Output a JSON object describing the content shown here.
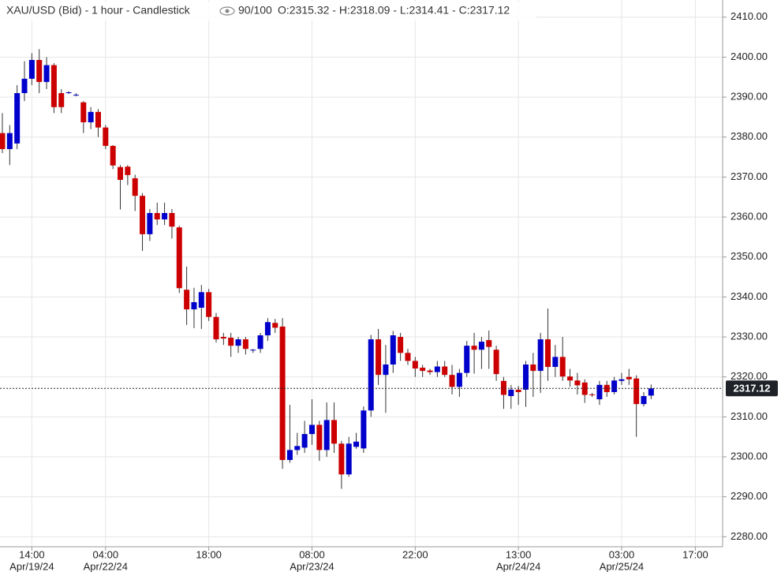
{
  "chart_data": {
    "type": "candlestick",
    "title": "XAU/USD (Bid) - 1 hour - Candlestick",
    "visible_count": "90/100",
    "ohlc_label": "O:2315.32 - H:2318.09 - L:2314.41 - C:2317.12",
    "up_color": "#0000cc",
    "down_color": "#cc0000",
    "grid": true,
    "xlim": [
      -0.32,
      97.7
    ],
    "ylim": [
      2277.5,
      2414.3
    ],
    "yticks": [
      {
        "value": 2280,
        "label": "2280.00"
      },
      {
        "value": 2290,
        "label": "2290.00"
      },
      {
        "value": 2300,
        "label": "2300.00"
      },
      {
        "value": 2310,
        "label": "2310.00"
      },
      {
        "value": 2320,
        "label": "2320.00"
      },
      {
        "value": 2330,
        "label": "2330.00"
      },
      {
        "value": 2340,
        "label": "2340.00"
      },
      {
        "value": 2350,
        "label": "2350.00"
      },
      {
        "value": 2360,
        "label": "2360.00"
      },
      {
        "value": 2370,
        "label": "2370.00"
      },
      {
        "value": 2380,
        "label": "2380.00"
      },
      {
        "value": 2390,
        "label": "2390.00"
      },
      {
        "value": 2400,
        "label": "2400.00"
      },
      {
        "value": 2410,
        "label": "2410.00"
      }
    ],
    "xticks": [
      {
        "value": 4,
        "label": "14:00",
        "date": "Apr/19/24"
      },
      {
        "value": 14,
        "label": "04:00",
        "date": "Apr/22/24"
      },
      {
        "value": 28,
        "label": "18:00"
      },
      {
        "value": 42,
        "label": "08:00",
        "date": "Apr/23/24"
      },
      {
        "value": 56,
        "label": "22:00"
      },
      {
        "value": 70,
        "label": "13:00",
        "date": "Apr/24/24"
      },
      {
        "value": 84,
        "label": "03:00",
        "date": "Apr/25/24"
      },
      {
        "value": 94,
        "label": "17:00"
      }
    ],
    "last_price": {
      "value": 2317.12,
      "label": "2317.12"
    },
    "open": [
      2381,
      2377,
      2378.4,
      2391,
      2394.6,
      2399.3,
      2393.8,
      2398,
      2391,
      2391,
      2390.5,
      2388.7,
      2383.7,
      2386.3,
      2382.4,
      2377.8,
      2372.5,
      2372.6,
      2369.7,
      2365.3,
      2355.7,
      2361,
      2359.4,
      2361,
      2357.4,
      2341.8,
      2336.9,
      2337.3,
      2341.2,
      2335,
      2330,
      2329.8,
      2327.8,
      2329.4,
      2326.6,
      2327,
      2330.4,
      2333.5,
      2332.6,
      2299.2,
      2301.7,
      2302.3,
      2305.7,
      2308,
      2301.7,
      2309.2,
      2303.3,
      2295.6,
      2302.5,
      2302.1,
      2311.6,
      2329.4,
      2320.5,
      2323.1,
      2330,
      2326,
      2324,
      2322.3,
      2321.6,
      2321.2,
      2322.6,
      2320.5,
      2317.5,
      2321,
      2327.8,
      2326.8,
      2329.2,
      2326.8,
      2319,
      2315.2,
      2316.8,
      2316.8,
      2323.1,
      2321.5,
      2329.4,
      2322.5,
      2325,
      2320.1,
      2319.1,
      2318.6,
      2315.6,
      2314.4,
      2318,
      2316.2,
      2319,
      2320,
      2319.6,
      2313.2,
      2315.32
    ],
    "high": [
      2386,
      2383,
      2393,
      2399,
      2401,
      2402,
      2400,
      2398.5,
      2392,
      2391.5,
      2391,
      2389,
      2387.5,
      2387,
      2383,
      2378,
      2373,
      2373,
      2370.6,
      2366,
      2362,
      2363.6,
      2363.6,
      2362,
      2357.8,
      2347.6,
      2342.3,
      2343,
      2342,
      2336,
      2331,
      2331,
      2330,
      2330,
      2327,
      2331,
      2334.7,
      2334.5,
      2334.7,
      2313,
      2306,
      2309,
      2314.4,
      2309,
      2313.6,
      2313.6,
      2304,
      2305,
      2306,
      2312.6,
      2330.5,
      2332,
      2328,
      2331.5,
      2331,
      2327,
      2325,
      2323,
      2322,
      2324,
      2324,
      2323,
      2322,
      2329,
      2331,
      2330,
      2331.6,
      2327.8,
      2320,
      2318,
      2317.7,
      2324,
      2326,
      2331,
      2337.1,
      2328,
      2330,
      2322,
      2321,
      2319.4,
      2316,
      2319,
      2319,
      2320,
      2321,
      2322,
      2320.4,
      2316.2,
      2318.09
    ],
    "low": [
      2376,
      2373,
      2377,
      2389,
      2393,
      2391,
      2392,
      2386,
      2386,
      2390.8,
      2390.2,
      2381,
      2382,
      2380,
      2377,
      2372,
      2361.9,
      2368,
      2361.5,
      2351.5,
      2354,
      2358,
      2358,
      2354.6,
      2341,
      2333,
      2332.2,
      2332,
      2334,
      2328.6,
      2328,
      2325,
      2326,
      2325.6,
      2326,
      2326,
      2329,
      2331,
      2297,
      2298.5,
      2300.5,
      2301,
      2303,
      2299,
      2300,
      2301,
      2292,
      2295,
      2302,
      2301,
      2310,
      2318,
      2311,
      2321,
      2324,
      2323,
      2320,
      2320,
      2320.5,
      2320,
      2320,
      2315.6,
      2315,
      2320,
      2320.8,
      2322,
      2322,
      2319,
      2312,
      2312,
      2313,
      2312.5,
      2315,
      2316,
      2319,
      2320,
      2319,
      2317.5,
      2315.6,
      2313.5,
      2315,
      2313,
      2315,
      2315.6,
      2318,
      2318,
      2305,
      2312.6,
      2314.41
    ],
    "close": [
      2377,
      2381,
      2391,
      2394.6,
      2399.3,
      2393.8,
      2398,
      2387.5,
      2387.5,
      2391.2,
      2390.6,
      2383.7,
      2386.3,
      2382.4,
      2377.8,
      2372.9,
      2369.3,
      2370.5,
      2365.3,
      2355.7,
      2361,
      2359.4,
      2361,
      2357.6,
      2342.2,
      2336.9,
      2338.7,
      2341.2,
      2335,
      2329.4,
      2329.6,
      2327.8,
      2329.4,
      2327,
      2326.8,
      2330.4,
      2333.7,
      2332.3,
      2299.2,
      2301.7,
      2302.7,
      2305.7,
      2308,
      2301.7,
      2309.2,
      2303.3,
      2295.6,
      2303.3,
      2303.8,
      2311.6,
      2329.4,
      2320.5,
      2323.1,
      2330.4,
      2326,
      2324,
      2322.1,
      2321.5,
      2321.2,
      2322.6,
      2320.5,
      2317.5,
      2321,
      2327.8,
      2326.8,
      2328.8,
      2327.5,
      2320.7,
      2315.5,
      2316.8,
      2316.2,
      2323.1,
      2321.5,
      2329.4,
      2322.5,
      2325,
      2320.1,
      2319.1,
      2317.9,
      2315.5,
      2315.4,
      2318,
      2316.2,
      2319.1,
      2319.4,
      2319.4,
      2313.2,
      2315.2,
      2317.12
    ]
  }
}
